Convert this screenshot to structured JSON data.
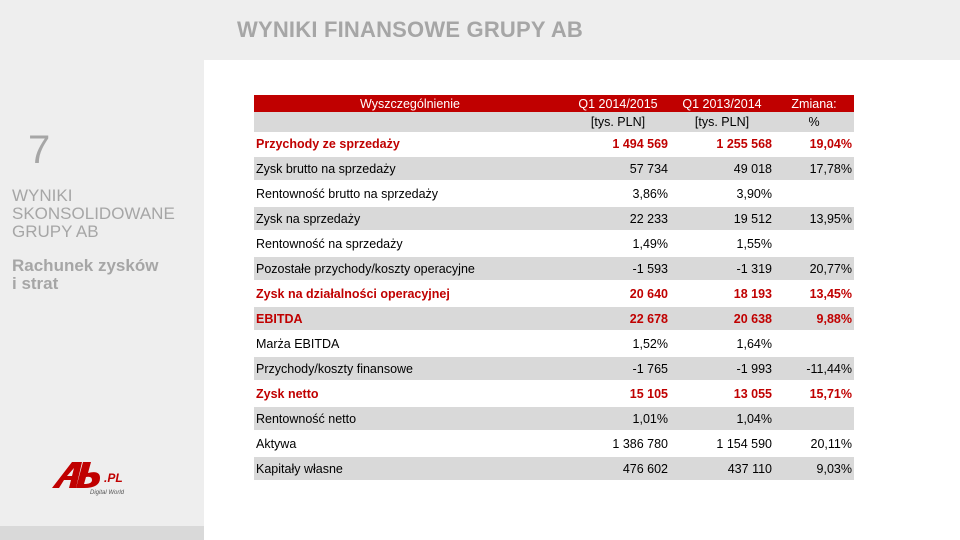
{
  "header": {
    "title": "WYNIKI FINANSOWE GRUPY AB"
  },
  "sidebar": {
    "slide_number": "7",
    "section_title_lines": [
      "WYNIKI",
      "SKONSOLIDOWANE",
      "GRUPY AB"
    ],
    "section_sub_lines": [
      "Rachunek zysków",
      "i strat"
    ],
    "logo": {
      "brand": "Ab",
      "suffix": ".PL",
      "tagline": "Digital World"
    }
  },
  "colors": {
    "accent_red": "#c00000",
    "row_grey": "#d9d9d9",
    "muted_text": "#a6a6a6"
  },
  "table": {
    "columns": [
      "Wyszczególnienie",
      "Q1 2014/2015",
      "Q1 2013/2014",
      "Zmiana:"
    ],
    "units": [
      "",
      "[tys. PLN]",
      "[tys. PLN]",
      "%"
    ],
    "rows": [
      {
        "label": "Przychody ze sprzedaży",
        "q1_2014": "1 494 569",
        "q1_2013": "1 255 568",
        "change": "19,04%"
      },
      {
        "label": "Zysk brutto na sprzedaży",
        "q1_2014": "57 734",
        "q1_2013": "49 018",
        "change": "17,78%"
      },
      {
        "label": "Rentowność brutto na sprzedaży",
        "q1_2014": "3,86%",
        "q1_2013": "3,90%",
        "change": ""
      },
      {
        "label": "Zysk na sprzedaży",
        "q1_2014": "22 233",
        "q1_2013": "19 512",
        "change": "13,95%"
      },
      {
        "label": "Rentowność na sprzedaży",
        "q1_2014": "1,49%",
        "q1_2013": "1,55%",
        "change": ""
      },
      {
        "label": "Pozostałe przychody/koszty operacyjne",
        "q1_2014": "-1 593",
        "q1_2013": "-1 319",
        "change": "20,77%"
      },
      {
        "label": "Zysk na działalności operacyjnej",
        "q1_2014": "20 640",
        "q1_2013": "18 193",
        "change": "13,45%"
      },
      {
        "label": "EBITDA",
        "q1_2014": "22 678",
        "q1_2013": "20 638",
        "change": "9,88%"
      },
      {
        "label": "Marża EBITDA",
        "q1_2014": "1,52%",
        "q1_2013": "1,64%",
        "change": ""
      },
      {
        "label": "Przychody/koszty finansowe",
        "q1_2014": "-1 765",
        "q1_2013": "-1 993",
        "change": "-11,44%"
      },
      {
        "label": "Zysk netto",
        "q1_2014": "15 105",
        "q1_2013": "13 055",
        "change": "15,71%"
      },
      {
        "label": "Rentowność netto",
        "q1_2014": "1,01%",
        "q1_2013": "1,04%",
        "change": ""
      },
      {
        "label": "Aktywa",
        "q1_2014": "1 386 780",
        "q1_2013": "1 154 590",
        "change": "20,11%"
      },
      {
        "label": "Kapitały własne",
        "q1_2014": "476 602",
        "q1_2013": "437 110",
        "change": "9,03%"
      }
    ]
  }
}
